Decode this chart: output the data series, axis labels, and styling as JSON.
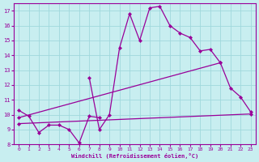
{
  "xlabel": "Windchill (Refroidissement éolien,°C)",
  "background_color": "#c8eef0",
  "grid_color": "#a0d8dc",
  "line_color": "#990099",
  "xlim": [
    -0.5,
    23.5
  ],
  "ylim": [
    8,
    17.5
  ],
  "yticks": [
    8,
    9,
    10,
    11,
    12,
    13,
    14,
    15,
    16,
    17
  ],
  "xticks": [
    0,
    1,
    2,
    3,
    4,
    5,
    6,
    7,
    8,
    9,
    10,
    11,
    12,
    13,
    14,
    15,
    16,
    17,
    18,
    19,
    20,
    21,
    22,
    23
  ],
  "series": [
    {
      "x": [
        0,
        1,
        2,
        3,
        4,
        5,
        6,
        7,
        8
      ],
      "y": [
        10.3,
        9.9,
        8.8,
        9.3,
        9.3,
        9.0,
        8.1,
        9.9,
        9.8
      ]
    },
    {
      "x": [
        7,
        8,
        9,
        10,
        11,
        12,
        13,
        14,
        15,
        16,
        17,
        18,
        19,
        20,
        21,
        22,
        23
      ],
      "y": [
        12.5,
        9.0,
        10.0,
        14.5,
        16.8,
        15.0,
        17.2,
        17.3,
        16.0,
        15.5,
        15.2,
        14.3,
        14.4,
        13.5,
        11.8,
        11.2,
        10.2
      ]
    },
    {
      "x": [
        0,
        23
      ],
      "y": [
        9.4,
        10.05
      ]
    },
    {
      "x": [
        0,
        20
      ],
      "y": [
        9.8,
        13.5
      ]
    }
  ]
}
